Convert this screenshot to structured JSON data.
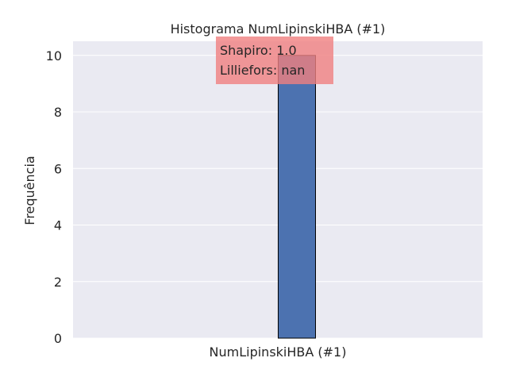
{
  "chart_data": {
    "type": "bar",
    "title": "Histograma NumLipinskiHBA (#1)",
    "xlabel": "NumLipinskiHBA (#1)",
    "ylabel": "Frequência",
    "ylim": [
      0,
      10.5
    ],
    "yticks": [
      0,
      2,
      4,
      6,
      8,
      10
    ],
    "categories": [
      ""
    ],
    "values": [
      10
    ],
    "grid": true,
    "annotation": {
      "lines": [
        "Shapiro: 1.0",
        "Lilliefors: nan"
      ]
    },
    "colors": {
      "background": "#eaeaf2",
      "bar": "#4c72b0",
      "bar_edge": "#000000",
      "annotation_box": "#f08080",
      "grid": "#ffffff"
    }
  }
}
